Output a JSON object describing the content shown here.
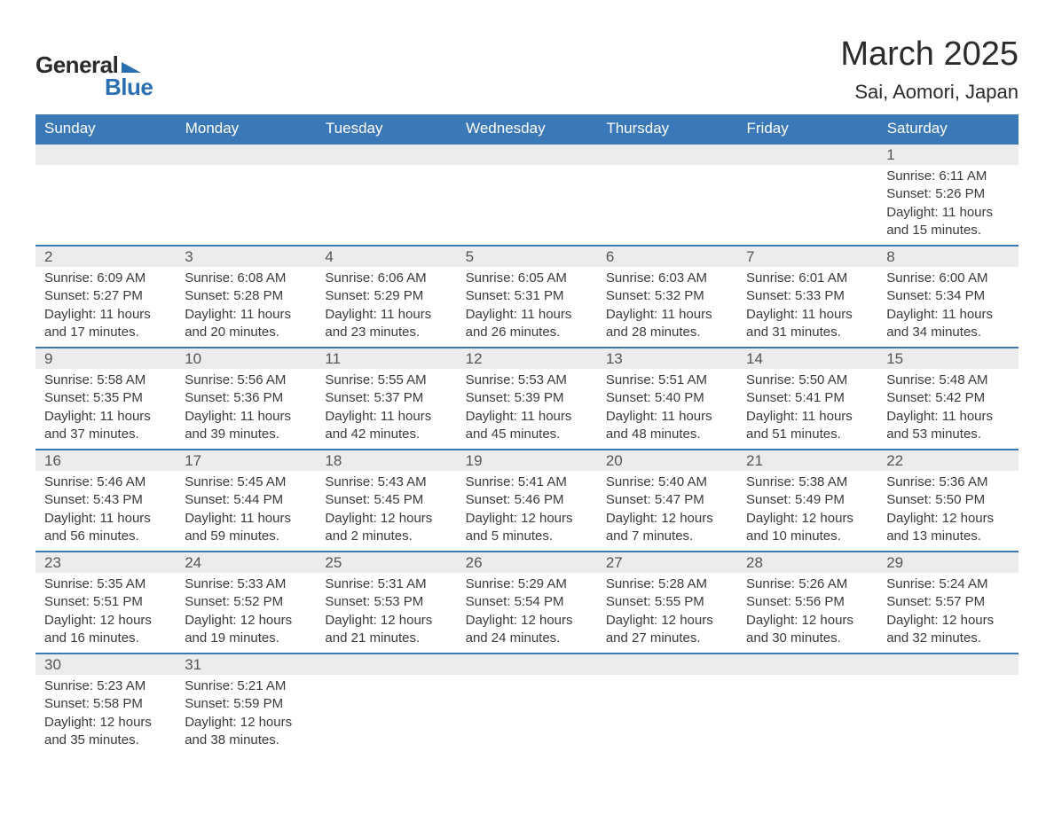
{
  "logo": {
    "word1": "General",
    "word2": "Blue"
  },
  "title": {
    "month": "March 2025",
    "location": "Sai, Aomori, Japan"
  },
  "colors": {
    "header_bg": "#3a78b8",
    "header_text": "#ffffff",
    "daynum_bg": "#ececec",
    "row_border": "#3a78b8",
    "body_text": "#3b3b3b",
    "logo_blue": "#2b6fb3",
    "page_bg": "#ffffff"
  },
  "typography": {
    "title_fontsize": 38,
    "location_fontsize": 22,
    "header_fontsize": 17,
    "daynum_fontsize": 17,
    "body_fontsize": 15
  },
  "layout": {
    "columns": 7,
    "weeks": 6,
    "first_day_column_index": 6
  },
  "day_headers": [
    "Sunday",
    "Monday",
    "Tuesday",
    "Wednesday",
    "Thursday",
    "Friday",
    "Saturday"
  ],
  "days": {
    "1": {
      "sunrise": "6:11 AM",
      "sunset": "5:26 PM",
      "daylight": "11 hours and 15 minutes."
    },
    "2": {
      "sunrise": "6:09 AM",
      "sunset": "5:27 PM",
      "daylight": "11 hours and 17 minutes."
    },
    "3": {
      "sunrise": "6:08 AM",
      "sunset": "5:28 PM",
      "daylight": "11 hours and 20 minutes."
    },
    "4": {
      "sunrise": "6:06 AM",
      "sunset": "5:29 PM",
      "daylight": "11 hours and 23 minutes."
    },
    "5": {
      "sunrise": "6:05 AM",
      "sunset": "5:31 PM",
      "daylight": "11 hours and 26 minutes."
    },
    "6": {
      "sunrise": "6:03 AM",
      "sunset": "5:32 PM",
      "daylight": "11 hours and 28 minutes."
    },
    "7": {
      "sunrise": "6:01 AM",
      "sunset": "5:33 PM",
      "daylight": "11 hours and 31 minutes."
    },
    "8": {
      "sunrise": "6:00 AM",
      "sunset": "5:34 PM",
      "daylight": "11 hours and 34 minutes."
    },
    "9": {
      "sunrise": "5:58 AM",
      "sunset": "5:35 PM",
      "daylight": "11 hours and 37 minutes."
    },
    "10": {
      "sunrise": "5:56 AM",
      "sunset": "5:36 PM",
      "daylight": "11 hours and 39 minutes."
    },
    "11": {
      "sunrise": "5:55 AM",
      "sunset": "5:37 PM",
      "daylight": "11 hours and 42 minutes."
    },
    "12": {
      "sunrise": "5:53 AM",
      "sunset": "5:39 PM",
      "daylight": "11 hours and 45 minutes."
    },
    "13": {
      "sunrise": "5:51 AM",
      "sunset": "5:40 PM",
      "daylight": "11 hours and 48 minutes."
    },
    "14": {
      "sunrise": "5:50 AM",
      "sunset": "5:41 PM",
      "daylight": "11 hours and 51 minutes."
    },
    "15": {
      "sunrise": "5:48 AM",
      "sunset": "5:42 PM",
      "daylight": "11 hours and 53 minutes."
    },
    "16": {
      "sunrise": "5:46 AM",
      "sunset": "5:43 PM",
      "daylight": "11 hours and 56 minutes."
    },
    "17": {
      "sunrise": "5:45 AM",
      "sunset": "5:44 PM",
      "daylight": "11 hours and 59 minutes."
    },
    "18": {
      "sunrise": "5:43 AM",
      "sunset": "5:45 PM",
      "daylight": "12 hours and 2 minutes."
    },
    "19": {
      "sunrise": "5:41 AM",
      "sunset": "5:46 PM",
      "daylight": "12 hours and 5 minutes."
    },
    "20": {
      "sunrise": "5:40 AM",
      "sunset": "5:47 PM",
      "daylight": "12 hours and 7 minutes."
    },
    "21": {
      "sunrise": "5:38 AM",
      "sunset": "5:49 PM",
      "daylight": "12 hours and 10 minutes."
    },
    "22": {
      "sunrise": "5:36 AM",
      "sunset": "5:50 PM",
      "daylight": "12 hours and 13 minutes."
    },
    "23": {
      "sunrise": "5:35 AM",
      "sunset": "5:51 PM",
      "daylight": "12 hours and 16 minutes."
    },
    "24": {
      "sunrise": "5:33 AM",
      "sunset": "5:52 PM",
      "daylight": "12 hours and 19 minutes."
    },
    "25": {
      "sunrise": "5:31 AM",
      "sunset": "5:53 PM",
      "daylight": "12 hours and 21 minutes."
    },
    "26": {
      "sunrise": "5:29 AM",
      "sunset": "5:54 PM",
      "daylight": "12 hours and 24 minutes."
    },
    "27": {
      "sunrise": "5:28 AM",
      "sunset": "5:55 PM",
      "daylight": "12 hours and 27 minutes."
    },
    "28": {
      "sunrise": "5:26 AM",
      "sunset": "5:56 PM",
      "daylight": "12 hours and 30 minutes."
    },
    "29": {
      "sunrise": "5:24 AM",
      "sunset": "5:57 PM",
      "daylight": "12 hours and 32 minutes."
    },
    "30": {
      "sunrise": "5:23 AM",
      "sunset": "5:58 PM",
      "daylight": "12 hours and 35 minutes."
    },
    "31": {
      "sunrise": "5:21 AM",
      "sunset": "5:59 PM",
      "daylight": "12 hours and 38 minutes."
    }
  },
  "labels": {
    "sunrise": "Sunrise: ",
    "sunset": "Sunset: ",
    "daylight": "Daylight: "
  },
  "grid": [
    [
      null,
      null,
      null,
      null,
      null,
      null,
      "1"
    ],
    [
      "2",
      "3",
      "4",
      "5",
      "6",
      "7",
      "8"
    ],
    [
      "9",
      "10",
      "11",
      "12",
      "13",
      "14",
      "15"
    ],
    [
      "16",
      "17",
      "18",
      "19",
      "20",
      "21",
      "22"
    ],
    [
      "23",
      "24",
      "25",
      "26",
      "27",
      "28",
      "29"
    ],
    [
      "30",
      "31",
      null,
      null,
      null,
      null,
      null
    ]
  ]
}
